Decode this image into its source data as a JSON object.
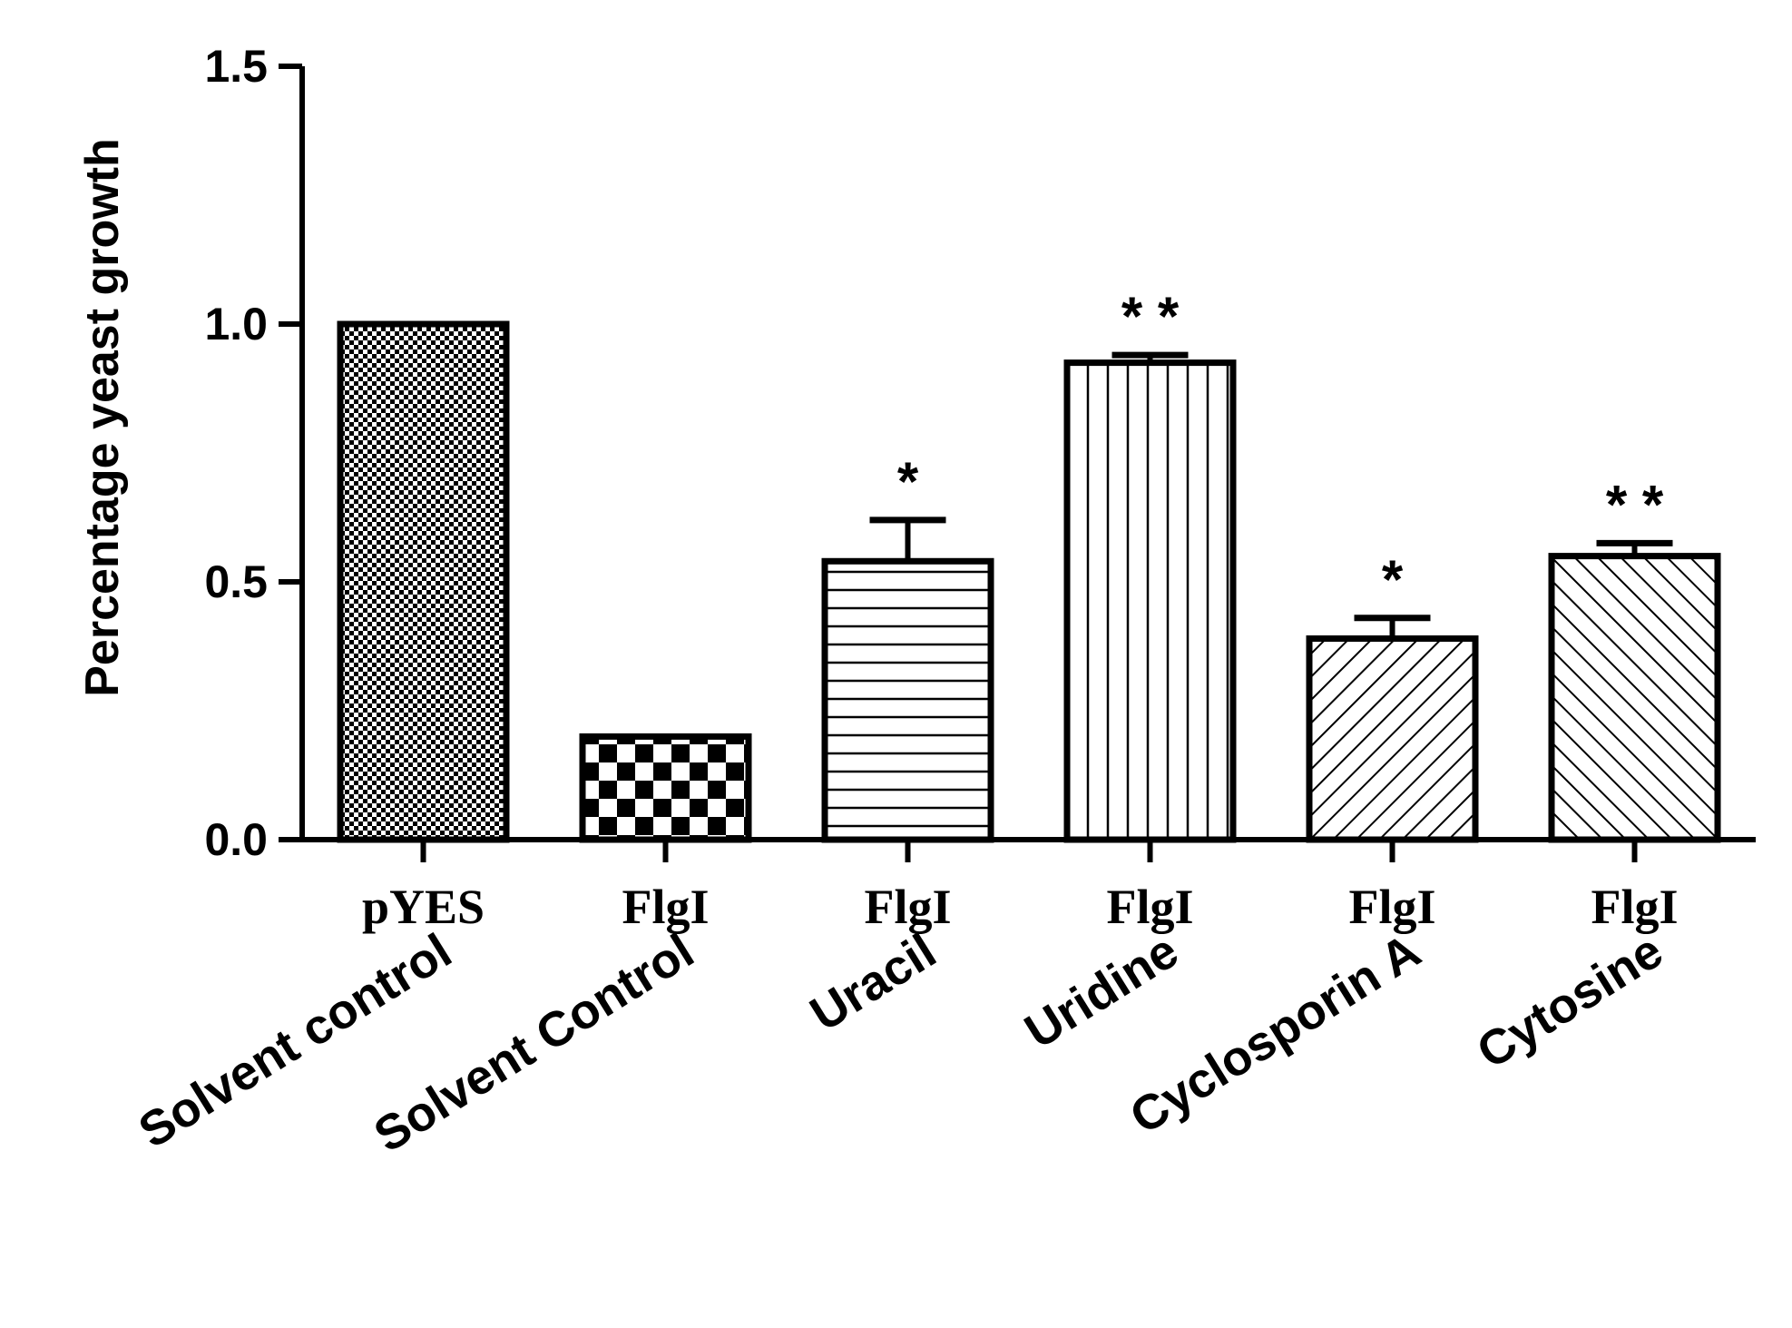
{
  "chart_data": {
    "type": "bar",
    "ylabel": "Percentage yeast growth",
    "ylim": [
      0,
      1.5
    ],
    "yticks": [
      "0.0",
      "0.5",
      "1.0",
      "1.5"
    ],
    "categories": [
      {
        "line1": "pYES",
        "line2": "Solvent control"
      },
      {
        "line1": "FlgI",
        "line2": "Solvent Control"
      },
      {
        "line1": "FlgI",
        "line2": "Uracil"
      },
      {
        "line1": "FlgI",
        "line2": "Uridine"
      },
      {
        "line1": "FlgI",
        "line2": "Cyclosporin A"
      },
      {
        "line1": "FlgI",
        "line2": "Cytosine"
      }
    ],
    "values": [
      1.0,
      0.2,
      0.54,
      0.925,
      0.39,
      0.55
    ],
    "errors": [
      0,
      0,
      0.08,
      0.015,
      0.04,
      0.025
    ],
    "significance": [
      "",
      "",
      "*",
      "* *",
      "*",
      "* *"
    ],
    "patterns": [
      "fine-checker",
      "large-checker",
      "horizontal-lines",
      "vertical-lines",
      "diagonal-up",
      "diagonal-down"
    ],
    "colors": {
      "stroke": "#000000",
      "fill": "#ffffff"
    },
    "grid": false
  }
}
